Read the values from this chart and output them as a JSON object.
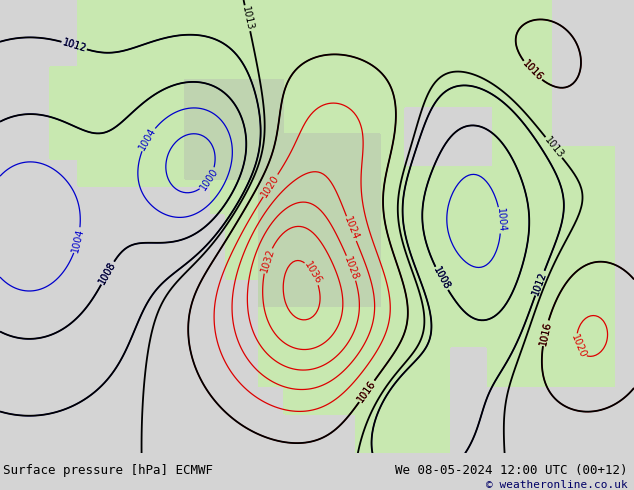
{
  "title_left": "Surface pressure [hPa] ECMWF",
  "title_right": "We 08-05-2024 12:00 UTC (00+12)",
  "copyright": "© weatheronline.co.uk",
  "ocean_color": "#c8dff0",
  "land_color": "#c8e8b0",
  "gray_color": "#b0b0b0",
  "footer_bg": "#d4d4d4",
  "font_color": "#000000",
  "copyright_color": "#000066",
  "contour_black": "#000000",
  "contour_red": "#dd0000",
  "contour_blue": "#0000cc",
  "title_fontsize": 9,
  "label_fontsize": 7
}
